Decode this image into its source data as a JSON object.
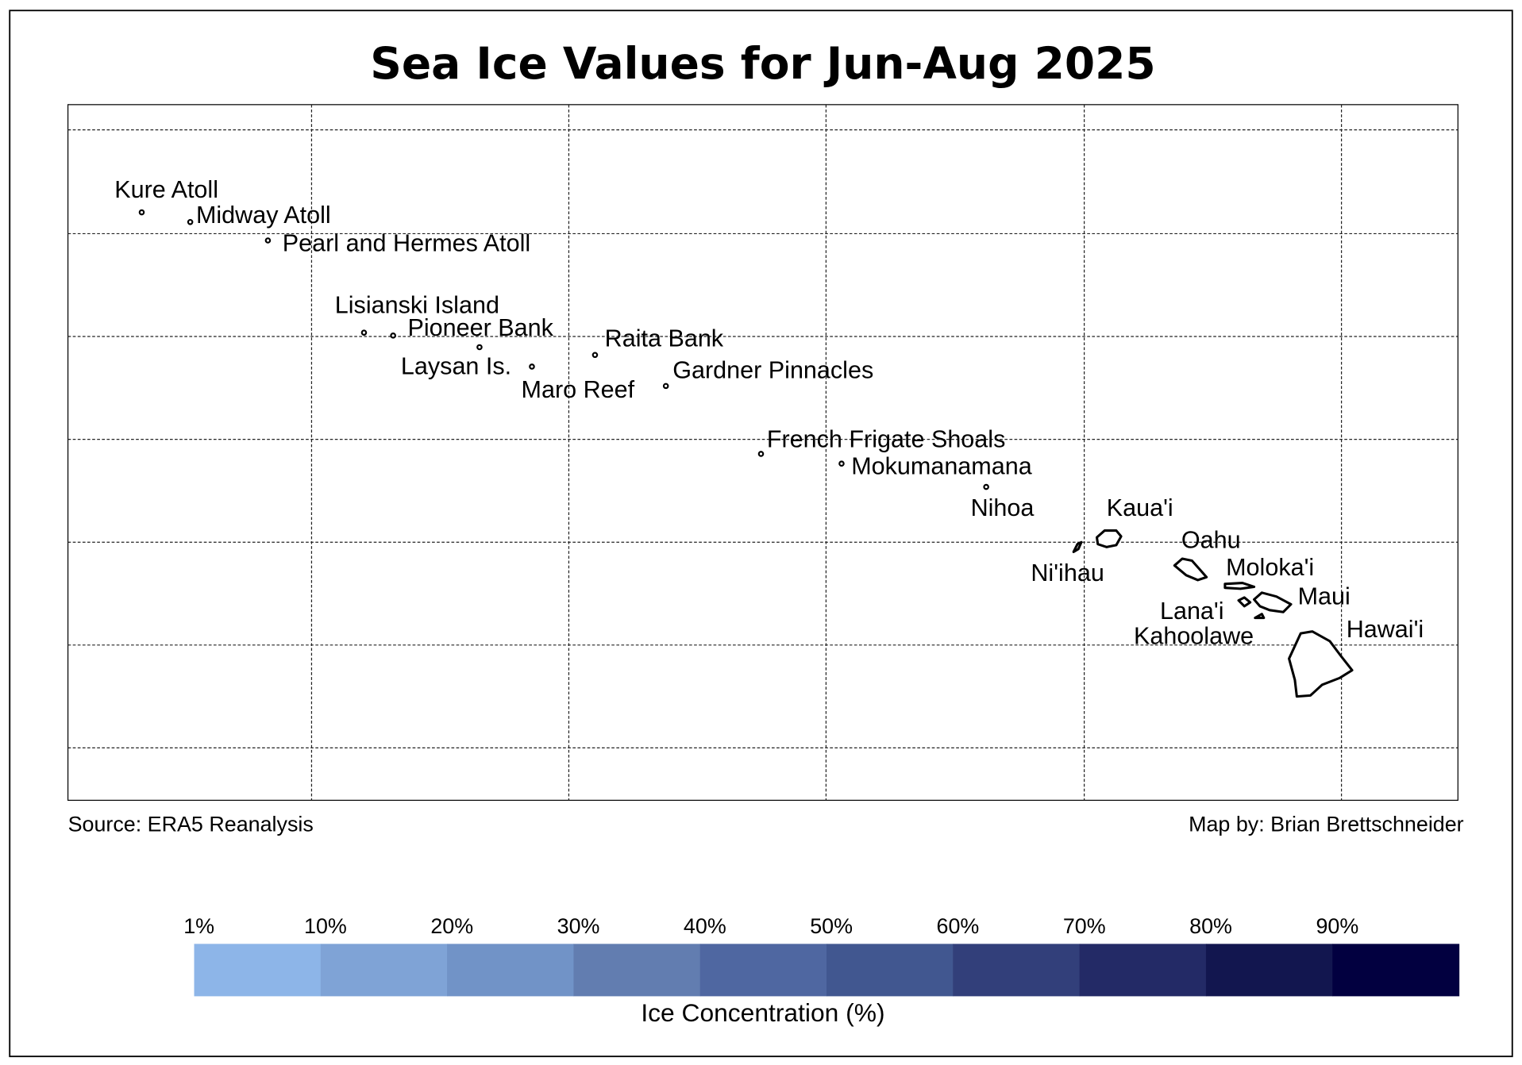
{
  "title": "Sea Ice Values for Jun-Aug 2025",
  "places": [
    "Kure Atoll",
    "Midway Atoll",
    "Pearl and Hermes Atoll",
    "Lisianski Island",
    "Pioneer Bank",
    "Laysan Is.",
    "Raita Bank",
    "Maro Reef",
    "Gardner Pinnacles",
    "French Frigate Shoals",
    "Mokumanamana",
    "Nihoa",
    "Kaua'i",
    "Oahu",
    "Ni'ihau",
    "Moloka'i",
    "Maui",
    "Lana'i",
    "Kahoolawe",
    "Hawai'i"
  ],
  "source": "Source: ERA5 Reanalysis",
  "credit": "Map by: Brian Brettschneider",
  "legend": {
    "title": "Ice Concentration (%)",
    "ticks": [
      "1%",
      "10%",
      "20%",
      "30%",
      "40%",
      "50%",
      "60%",
      "70%",
      "80%",
      "90%"
    ],
    "colors": [
      "#8db5e8",
      "#7fa3d6",
      "#7193c7",
      "#627db0",
      "#4f67a1",
      "#415790",
      "#323f7a",
      "#232a66",
      "#12164f",
      "#020040"
    ]
  }
}
